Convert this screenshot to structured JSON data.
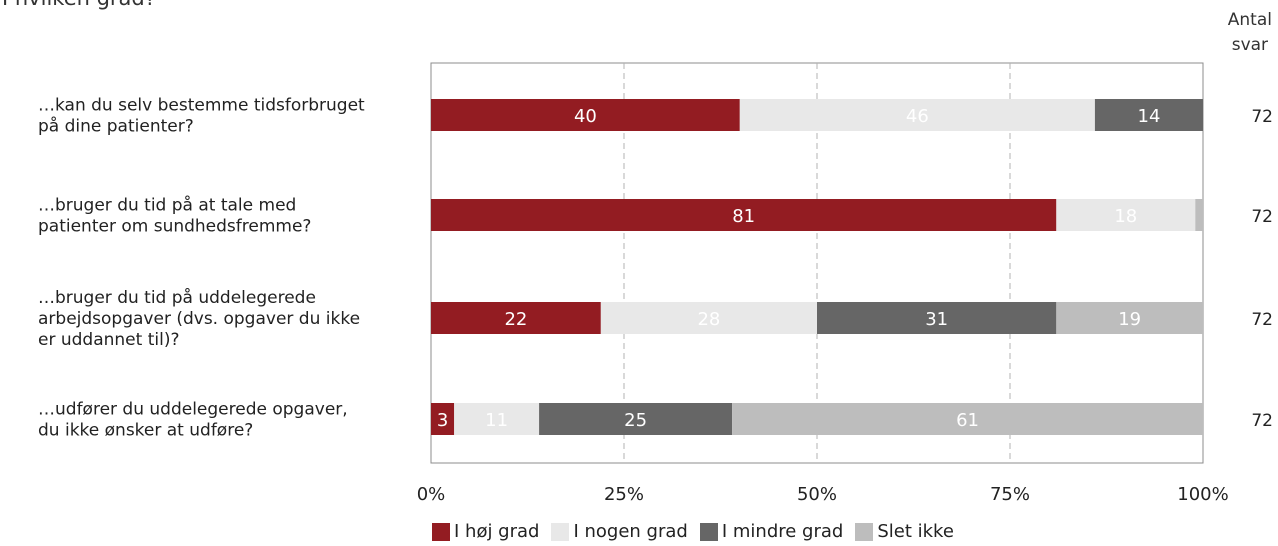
{
  "title": "I hvilken grad?",
  "count_header": [
    "Antal",
    "svar"
  ],
  "chart_data": {
    "type": "bar",
    "orientation": "horizontal",
    "stacked": true,
    "title": "",
    "categories": [
      [
        "…kan du selv bestemme tidsforbruget",
        "på dine patienter?"
      ],
      [
        "…bruger du tid på at tale med",
        "patienter om sundhedsfremme?"
      ],
      [
        "…bruger du tid på uddelegerede",
        "arbejdsopgaver (dvs. opgaver du ikke",
        "er uddannet til)?"
      ],
      [
        "…udfører du uddelegerede opgaver,",
        "du ikke ønsker at udføre?"
      ]
    ],
    "series": [
      {
        "name": "I høj grad",
        "color": "#931c22",
        "label_color": "#ffffff",
        "values": [
          40,
          81,
          22,
          3
        ]
      },
      {
        "name": "I nogen grad",
        "color": "#e8e8e8",
        "label_color": "#ffffff",
        "values": [
          46,
          18,
          28,
          11
        ]
      },
      {
        "name": "I mindre grad",
        "color": "#666666",
        "label_color": "#ffffff",
        "values": [
          14,
          0,
          31,
          25
        ]
      },
      {
        "name": "Slet ikke",
        "color": "#bdbdbd",
        "label_color": "#ffffff",
        "values": [
          0,
          1,
          19,
          61
        ]
      }
    ],
    "counts": [
      72,
      72,
      72,
      72
    ],
    "xlim": [
      0,
      100
    ],
    "xticks": [
      "0%",
      "25%",
      "50%",
      "75%",
      "100%"
    ],
    "grid": "vertical-dashed",
    "legend": "bottom"
  }
}
